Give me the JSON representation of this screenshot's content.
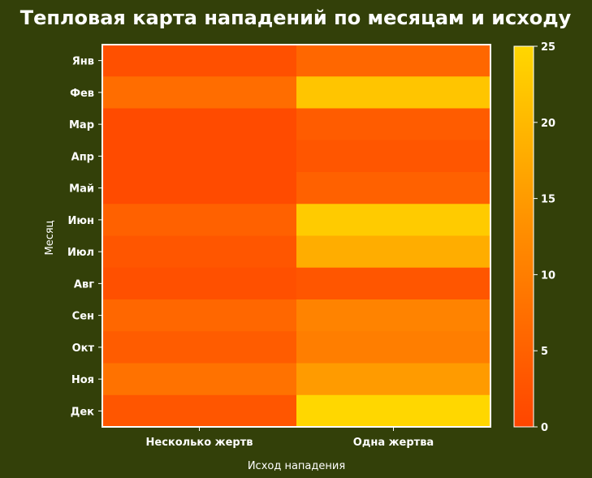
{
  "chart_data": {
    "type": "heatmap",
    "title": "Тепловая карта нападений по месяцам и исходу",
    "xlabel": "Исход нападения",
    "ylabel": "Месяц",
    "x_categories": [
      "Несколько жертв",
      "Одна жертва"
    ],
    "y_categories": [
      "Янв",
      "Фев",
      "Мар",
      "Апр",
      "Май",
      "Июн",
      "Июл",
      "Авг",
      "Сен",
      "Окт",
      "Ноя",
      "Дек"
    ],
    "values": [
      [
        2,
        6
      ],
      [
        7,
        22
      ],
      [
        1,
        4
      ],
      [
        1,
        3
      ],
      [
        1,
        5
      ],
      [
        5,
        23
      ],
      [
        3,
        18
      ],
      [
        2,
        3
      ],
      [
        6,
        11
      ],
      [
        4,
        10
      ],
      [
        8,
        15
      ],
      [
        3,
        25
      ]
    ],
    "colorbar": {
      "min": 0,
      "max": 25,
      "ticks": [
        0,
        5,
        10,
        15,
        20,
        25
      ],
      "colors": [
        "#ff4500",
        "#ff8c00",
        "#ffd700"
      ]
    },
    "background_color": "#334009",
    "frame_color": "#ffffff"
  }
}
